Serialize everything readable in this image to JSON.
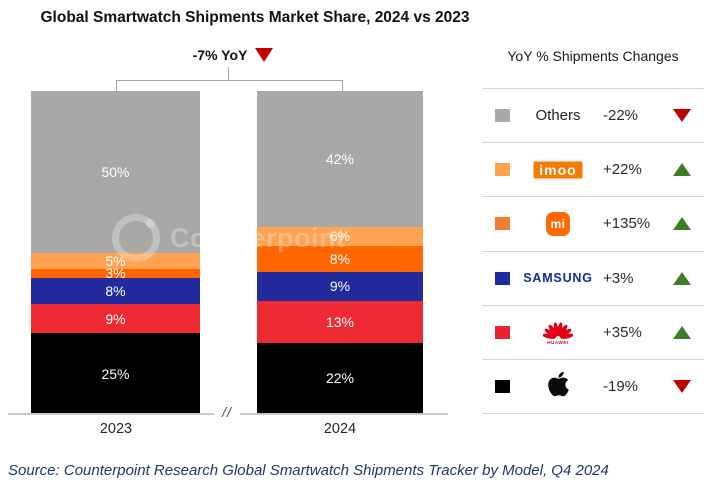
{
  "title": "Global Smartwatch Shipments Market Share, 2024 vs 2023",
  "yoy_label": "-7% YoY",
  "axis": {
    "categories": [
      "2023",
      "2024"
    ],
    "break_symbol": "//"
  },
  "legend": {
    "title": "YoY % Shipments Changes",
    "rows": [
      {
        "name": "Others",
        "logo": "text",
        "logo_text": "Others",
        "change": "-22%",
        "direction": "down",
        "swatch": "#A9A9A9"
      },
      {
        "name": "imoo",
        "logo": "imoo",
        "logo_text": "imoo",
        "change": "+22%",
        "direction": "up",
        "swatch": "#FFA34F"
      },
      {
        "name": "Xiaomi",
        "logo": "mi",
        "logo_text": "mi",
        "change": "+135%",
        "direction": "up",
        "swatch": "#ED7D31"
      },
      {
        "name": "Samsung",
        "logo": "samsung",
        "logo_text": "SAMSUNG",
        "change": "+3%",
        "direction": "up",
        "swatch": "#1F2BA0"
      },
      {
        "name": "Huawei",
        "logo": "huawei",
        "logo_text": "HUAWEI",
        "change": "+35%",
        "direction": "up",
        "swatch": "#E8232F"
      },
      {
        "name": "Apple",
        "logo": "apple",
        "logo_text": "",
        "change": "-19%",
        "direction": "down",
        "swatch": "#000000"
      }
    ]
  },
  "watermark": "Counterpoint",
  "source": "Source: Counterpoint Research Global Smartwatch Shipments Tracker by Model, Q4 2024",
  "colors": {
    "up_green": "#3C7D28",
    "down_red": "#C00000",
    "axis_gray": "#C9C9C9",
    "bracket_gray": "#A6A6A6"
  },
  "chart_data": {
    "type": "bar",
    "stacked": true,
    "title": "Global Smartwatch Shipments Market Share, 2024 vs 2023",
    "categories": [
      "2023",
      "2024"
    ],
    "unit": "%",
    "ylim": [
      0,
      100
    ],
    "grid": false,
    "legend_position": "right",
    "series": [
      {
        "name": "Others",
        "color": "#A8A8A8",
        "values": [
          50,
          42
        ],
        "yoy_change": "-22%"
      },
      {
        "name": "imoo",
        "color": "#FFA352",
        "values": [
          5,
          6
        ],
        "yoy_change": "+22%"
      },
      {
        "name": "Xiaomi",
        "color": "#FF6600",
        "values": [
          3,
          8
        ],
        "yoy_change": "+135%"
      },
      {
        "name": "Samsung",
        "color": "#232A9E",
        "values": [
          8,
          9
        ],
        "yoy_change": "+3%"
      },
      {
        "name": "Huawei",
        "color": "#EE2B34",
        "values": [
          9,
          13
        ],
        "yoy_change": "+35%"
      },
      {
        "name": "Apple",
        "color": "#000000",
        "values": [
          25,
          22
        ],
        "yoy_change": "-19%"
      }
    ],
    "stack_order_top_to_bottom": [
      "Others",
      "imoo",
      "Xiaomi",
      "Samsung",
      "Huawei",
      "Apple"
    ],
    "total_change_label": "-7% YoY"
  }
}
